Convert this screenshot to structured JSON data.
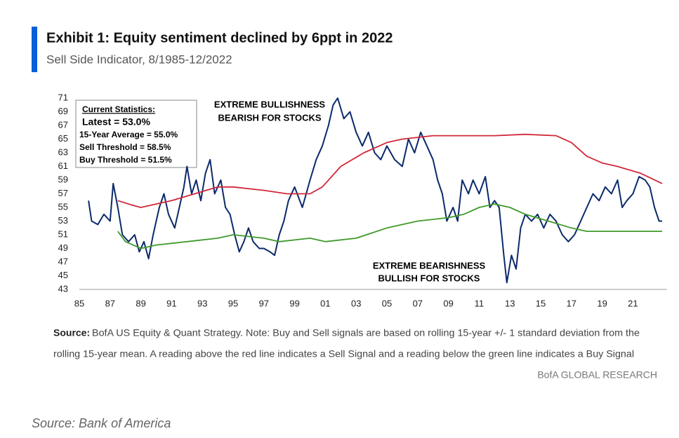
{
  "chart_data": {
    "type": "line",
    "title": "Exhibit 1: Equity sentiment declined by 6ppt in 2022",
    "subtitle": "Sell Side Indicator, 8/1985-12/2022",
    "stats": [
      "Current Statistics:",
      "Latest = 53.0%",
      "15-Year Average = 55.0%",
      "Sell Threshold = 58.5%",
      "Buy Threshold = 51.5%"
    ],
    "annotations": [
      "EXTREME BULLISHNESS",
      "BEARISH FOR STOCKS",
      "EXTREME BEARISHNESS",
      "BULLISH FOR STOCKS"
    ],
    "source_label": "Source:",
    "note": [
      "BofA US Equity & Quant Strategy. Note: Buy and Sell signals are based on rolling 15-year +/- 1 standard deviation from the",
      "rolling 15-year mean. A reading above the red line indicates a Sell Signal and a reading below the green line indicates a Buy Signal"
    ],
    "brand": "BofA GLOBAL RESEARCH",
    "caption": "Source: Bank of America",
    "xlim": [
      1985,
      2023.2
    ],
    "xticks": [
      {
        "value": 1985,
        "label": "85"
      },
      {
        "value": 1987,
        "label": "87"
      },
      {
        "value": 1989,
        "label": "89"
      },
      {
        "value": 1991,
        "label": "91"
      },
      {
        "value": 1993,
        "label": "93"
      },
      {
        "value": 1995,
        "label": "95"
      },
      {
        "value": 1997,
        "label": "97"
      },
      {
        "value": 1999,
        "label": "99"
      },
      {
        "value": 2001,
        "label": "01"
      },
      {
        "value": 2003,
        "label": "03"
      },
      {
        "value": 2005,
        "label": "05"
      },
      {
        "value": 2007,
        "label": "07"
      },
      {
        "value": 2009,
        "label": "09"
      },
      {
        "value": 2011,
        "label": "11"
      },
      {
        "value": 2013,
        "label": "13"
      },
      {
        "value": 2015,
        "label": "15"
      },
      {
        "value": 2017,
        "label": "17"
      },
      {
        "value": 2019,
        "label": "19"
      },
      {
        "value": 2021,
        "label": "21"
      }
    ],
    "ylim": [
      43,
      71
    ],
    "yticks": [
      43,
      45,
      47,
      49,
      51,
      53,
      55,
      57,
      59,
      61,
      63,
      65,
      67,
      69,
      71
    ],
    "series": [
      {
        "color": "#0b2a6b",
        "x": [
          1985.6,
          1985.8,
          1986.2,
          1986.6,
          1987.0,
          1987.2,
          1987.5,
          1987.8,
          1988.2,
          1988.6,
          1988.9,
          1989.2,
          1989.5,
          1989.8,
          1990.2,
          1990.5,
          1990.8,
          1991.2,
          1991.5,
          1991.8,
          1992.0,
          1992.3,
          1992.6,
          1992.9,
          1993.2,
          1993.5,
          1993.8,
          1994.2,
          1994.5,
          1994.8,
          1995.1,
          1995.4,
          1995.7,
          1996.0,
          1996.3,
          1996.7,
          1997.0,
          1997.4,
          1997.7,
          1998.0,
          1998.3,
          1998.6,
          1999.0,
          1999.5,
          2000.0,
          2000.4,
          2000.8,
          2001.2,
          2001.5,
          2001.8,
          2002.2,
          2002.6,
          2003.0,
          2003.4,
          2003.8,
          2004.2,
          2004.6,
          2005.0,
          2005.5,
          2006.0,
          2006.4,
          2006.8,
          2007.2,
          2007.6,
          2008.0,
          2008.3,
          2008.6,
          2008.9,
          2009.3,
          2009.6,
          2009.9,
          2010.3,
          2010.6,
          2011.0,
          2011.4,
          2011.7,
          2012.0,
          2012.3,
          2012.6,
          2012.8,
          2013.1,
          2013.4,
          2013.7,
          2014.0,
          2014.4,
          2014.8,
          2015.2,
          2015.6,
          2016.0,
          2016.4,
          2016.8,
          2017.2,
          2017.6,
          2018.0,
          2018.4,
          2018.8,
          2019.2,
          2019.6,
          2020.0,
          2020.3,
          2020.6,
          2021.0,
          2021.4,
          2021.8,
          2022.1,
          2022.4,
          2022.7,
          2022.9
        ],
        "values": [
          56,
          53,
          52.5,
          54,
          53,
          58.5,
          55,
          51,
          50,
          51,
          48.5,
          50,
          47.5,
          51,
          55,
          57,
          54,
          52,
          55,
          58,
          61,
          57,
          59,
          56,
          60,
          62,
          57,
          59,
          55,
          54,
          51,
          48.5,
          50,
          52,
          50,
          49,
          49,
          48.5,
          48,
          51,
          53,
          56,
          58,
          55,
          59,
          62,
          64,
          67,
          70,
          71,
          68,
          69,
          66,
          64,
          66,
          63,
          62,
          64,
          62,
          61,
          65,
          63,
          66,
          64,
          62,
          59,
          57,
          53,
          55,
          53,
          59,
          57,
          59,
          57,
          59.5,
          55,
          56,
          55,
          48,
          44,
          48,
          46,
          52,
          54,
          53,
          54,
          52,
          54,
          53,
          51,
          50,
          51,
          53,
          55,
          57,
          56,
          58,
          57,
          59,
          55,
          56,
          57,
          59.5,
          59,
          58,
          55,
          53,
          53.0
        ]
      },
      {
        "color": "#d0283a",
        "x": [
          1987.5,
          1988.5,
          1989.0,
          1990.0,
          1991.0,
          1992.5,
          1994.0,
          1995.0,
          1997.0,
          1998.5,
          2000.0,
          2000.8,
          2002.0,
          2003.5,
          2005.0,
          2006.0,
          2008.0,
          2010.0,
          2012.0,
          2014.0,
          2016.0,
          2017.0,
          2018.0,
          2019.0,
          2020.0,
          2021.5,
          2022.9
        ],
        "values": [
          56,
          55.3,
          55,
          55.5,
          56,
          57,
          58,
          58,
          57.5,
          57,
          57,
          58,
          61,
          63,
          64.5,
          65,
          65.5,
          65.5,
          65.5,
          65.7,
          65.5,
          64.5,
          62.5,
          61.5,
          61,
          60,
          58.5
        ]
      },
      {
        "color": "#3f9a2a",
        "x": [
          1987.5,
          1988.0,
          1989.0,
          1990.0,
          1992.0,
          1994.0,
          1995.0,
          1997.0,
          1998.0,
          2000.0,
          2001.0,
          2003.0,
          2005.0,
          2007.0,
          2009.0,
          2010.0,
          2011.0,
          2012.0,
          2013.0,
          2014.0,
          2015.5,
          2017.0,
          2018.0,
          2020.0,
          2022.0,
          2022.9
        ],
        "values": [
          51.5,
          50,
          49,
          49.5,
          50,
          50.5,
          51,
          50.5,
          50,
          50.5,
          50,
          50.5,
          52,
          53,
          53.5,
          54,
          55,
          55.5,
          55,
          54,
          53,
          52,
          51.5,
          51.5,
          51.5,
          51.5
        ]
      }
    ]
  }
}
